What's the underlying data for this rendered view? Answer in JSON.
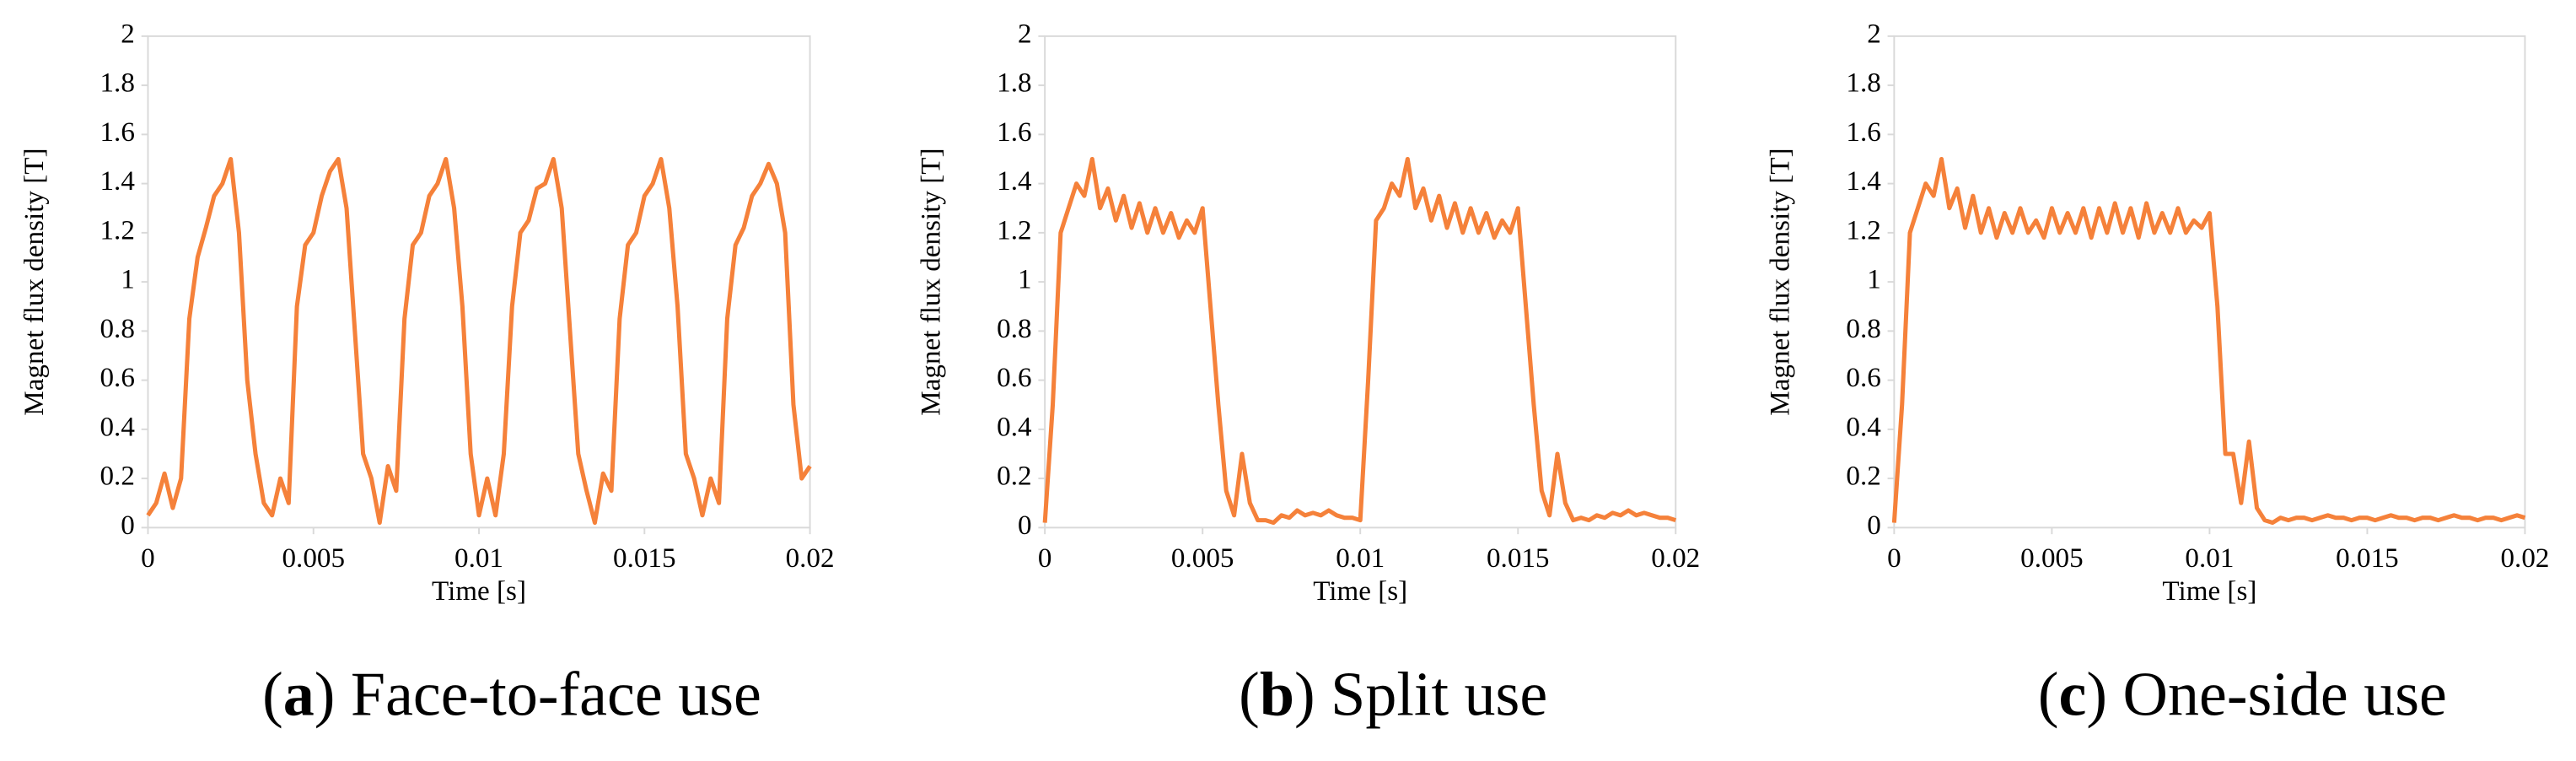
{
  "chart_data": [
    {
      "type": "line",
      "caption": [
        "(",
        "a",
        ") Face-to-face use"
      ],
      "xlabel": "Time [s]",
      "ylabel": "Magnet flux density [T]",
      "color": "#f5813a",
      "xlim": [
        0,
        0.02
      ],
      "xticks": [
        0,
        0.005,
        0.01,
        0.015,
        0.02
      ],
      "ylim": [
        0,
        2
      ],
      "yticks": [
        0,
        0.2,
        0.4,
        0.6,
        0.8,
        1,
        1.2,
        1.4,
        1.6,
        1.8,
        2
      ],
      "x": [
        0,
        0.00025,
        0.0005,
        0.00075,
        0.001,
        0.00125,
        0.0015,
        0.00175,
        0.002,
        0.00225,
        0.0025,
        0.00275,
        0.003,
        0.00325,
        0.0035,
        0.00375,
        0.004,
        0.00425,
        0.0045,
        0.00475,
        0.005,
        0.00525,
        0.0055,
        0.00575,
        0.006,
        0.00625,
        0.0065,
        0.00675,
        0.007,
        0.00725,
        0.0075,
        0.00775,
        0.008,
        0.00825,
        0.0085,
        0.00875,
        0.009,
        0.00925,
        0.0095,
        0.00975,
        0.01,
        0.01025,
        0.0105,
        0.01075,
        0.011,
        0.01125,
        0.0115,
        0.01175,
        0.012,
        0.01225,
        0.0125,
        0.01275,
        0.013,
        0.01325,
        0.0135,
        0.01375,
        0.014,
        0.01425,
        0.0145,
        0.01475,
        0.015,
        0.01525,
        0.0155,
        0.01575,
        0.016,
        0.01625,
        0.0165,
        0.01675,
        0.017,
        0.01725,
        0.0175,
        0.01775,
        0.018,
        0.01825,
        0.0185,
        0.01875,
        0.019,
        0.01925,
        0.0195,
        0.01975,
        0.02
      ],
      "values": [
        0.05,
        0.1,
        0.22,
        0.08,
        0.2,
        0.85,
        1.1,
        1.22,
        1.35,
        1.4,
        1.5,
        1.2,
        0.6,
        0.3,
        0.1,
        0.05,
        0.2,
        0.1,
        0.9,
        1.15,
        1.2,
        1.35,
        1.45,
        1.5,
        1.3,
        0.8,
        0.3,
        0.2,
        0.02,
        0.25,
        0.15,
        0.85,
        1.15,
        1.2,
        1.35,
        1.4,
        1.5,
        1.3,
        0.9,
        0.3,
        0.05,
        0.2,
        0.05,
        0.3,
        0.9,
        1.2,
        1.25,
        1.38,
        1.4,
        1.5,
        1.3,
        0.8,
        0.3,
        0.15,
        0.02,
        0.22,
        0.15,
        0.85,
        1.15,
        1.2,
        1.35,
        1.4,
        1.5,
        1.3,
        0.9,
        0.3,
        0.2,
        0.05,
        0.2,
        0.1,
        0.85,
        1.15,
        1.22,
        1.35,
        1.4,
        1.48,
        1.4,
        1.2,
        0.5,
        0.2,
        0.25
      ]
    },
    {
      "type": "line",
      "caption": [
        "(",
        "b",
        ") Split use"
      ],
      "xlabel": "Time [s]",
      "ylabel": "Magnet flux density [T]",
      "color": "#f5813a",
      "xlim": [
        0,
        0.02
      ],
      "xticks": [
        0,
        0.005,
        0.01,
        0.015,
        0.02
      ],
      "ylim": [
        0,
        2
      ],
      "yticks": [
        0,
        0.2,
        0.4,
        0.6,
        0.8,
        1,
        1.2,
        1.4,
        1.6,
        1.8,
        2
      ],
      "x": [
        0,
        0.00025,
        0.0005,
        0.00075,
        0.001,
        0.00125,
        0.0015,
        0.00175,
        0.002,
        0.00225,
        0.0025,
        0.00275,
        0.003,
        0.00325,
        0.0035,
        0.00375,
        0.004,
        0.00425,
        0.0045,
        0.00475,
        0.005,
        0.00525,
        0.0055,
        0.00575,
        0.006,
        0.00625,
        0.0065,
        0.00675,
        0.007,
        0.00725,
        0.0075,
        0.00775,
        0.008,
        0.00825,
        0.0085,
        0.00875,
        0.009,
        0.00925,
        0.0095,
        0.00975,
        0.01,
        0.01025,
        0.0105,
        0.01075,
        0.011,
        0.01125,
        0.0115,
        0.01175,
        0.012,
        0.01225,
        0.0125,
        0.01275,
        0.013,
        0.01325,
        0.0135,
        0.01375,
        0.014,
        0.01425,
        0.0145,
        0.01475,
        0.015,
        0.01525,
        0.0155,
        0.01575,
        0.016,
        0.01625,
        0.0165,
        0.01675,
        0.017,
        0.01725,
        0.0175,
        0.01775,
        0.018,
        0.01825,
        0.0185,
        0.01875,
        0.019,
        0.01925,
        0.0195,
        0.01975,
        0.02
      ],
      "values": [
        0.02,
        0.5,
        1.2,
        1.3,
        1.4,
        1.35,
        1.5,
        1.3,
        1.38,
        1.25,
        1.35,
        1.22,
        1.32,
        1.2,
        1.3,
        1.2,
        1.28,
        1.18,
        1.25,
        1.2,
        1.3,
        0.9,
        0.5,
        0.15,
        0.05,
        0.3,
        0.1,
        0.03,
        0.03,
        0.02,
        0.05,
        0.04,
        0.07,
        0.05,
        0.06,
        0.05,
        0.07,
        0.05,
        0.04,
        0.04,
        0.03,
        0.6,
        1.25,
        1.3,
        1.4,
        1.35,
        1.5,
        1.3,
        1.38,
        1.25,
        1.35,
        1.22,
        1.32,
        1.2,
        1.3,
        1.2,
        1.28,
        1.18,
        1.25,
        1.2,
        1.3,
        0.9,
        0.5,
        0.15,
        0.05,
        0.3,
        0.1,
        0.03,
        0.04,
        0.03,
        0.05,
        0.04,
        0.06,
        0.05,
        0.07,
        0.05,
        0.06,
        0.05,
        0.04,
        0.04,
        0.03
      ]
    },
    {
      "type": "line",
      "caption": [
        "(",
        "c",
        ") One-side use"
      ],
      "xlabel": "Time [s]",
      "ylabel": "Magnet flux density [T]",
      "color": "#f5813a",
      "xlim": [
        0,
        0.02
      ],
      "xticks": [
        0,
        0.005,
        0.01,
        0.015,
        0.02
      ],
      "ylim": [
        0,
        2
      ],
      "yticks": [
        0,
        0.2,
        0.4,
        0.6,
        0.8,
        1,
        1.2,
        1.4,
        1.6,
        1.8,
        2
      ],
      "x": [
        0,
        0.00025,
        0.0005,
        0.00075,
        0.001,
        0.00125,
        0.0015,
        0.00175,
        0.002,
        0.00225,
        0.0025,
        0.00275,
        0.003,
        0.00325,
        0.0035,
        0.00375,
        0.004,
        0.00425,
        0.0045,
        0.00475,
        0.005,
        0.00525,
        0.0055,
        0.00575,
        0.006,
        0.00625,
        0.0065,
        0.00675,
        0.007,
        0.00725,
        0.0075,
        0.00775,
        0.008,
        0.00825,
        0.0085,
        0.00875,
        0.009,
        0.00925,
        0.0095,
        0.00975,
        0.01,
        0.01025,
        0.0105,
        0.01075,
        0.011,
        0.01125,
        0.0115,
        0.01175,
        0.012,
        0.01225,
        0.0125,
        0.01275,
        0.013,
        0.01325,
        0.0135,
        0.01375,
        0.014,
        0.01425,
        0.0145,
        0.01475,
        0.015,
        0.01525,
        0.0155,
        0.01575,
        0.016,
        0.01625,
        0.0165,
        0.01675,
        0.017,
        0.01725,
        0.0175,
        0.01775,
        0.018,
        0.01825,
        0.0185,
        0.01875,
        0.019,
        0.01925,
        0.0195,
        0.01975,
        0.02
      ],
      "values": [
        0.02,
        0.5,
        1.2,
        1.3,
        1.4,
        1.35,
        1.5,
        1.3,
        1.38,
        1.22,
        1.35,
        1.2,
        1.3,
        1.18,
        1.28,
        1.2,
        1.3,
        1.2,
        1.25,
        1.18,
        1.3,
        1.2,
        1.28,
        1.2,
        1.3,
        1.18,
        1.3,
        1.2,
        1.32,
        1.2,
        1.3,
        1.18,
        1.32,
        1.2,
        1.28,
        1.2,
        1.3,
        1.2,
        1.25,
        1.22,
        1.28,
        0.9,
        0.3,
        0.3,
        0.1,
        0.35,
        0.08,
        0.03,
        0.02,
        0.04,
        0.03,
        0.04,
        0.04,
        0.03,
        0.04,
        0.05,
        0.04,
        0.04,
        0.03,
        0.04,
        0.04,
        0.03,
        0.04,
        0.05,
        0.04,
        0.04,
        0.03,
        0.04,
        0.04,
        0.03,
        0.04,
        0.05,
        0.04,
        0.04,
        0.03,
        0.04,
        0.04,
        0.03,
        0.04,
        0.05,
        0.04
      ]
    }
  ]
}
